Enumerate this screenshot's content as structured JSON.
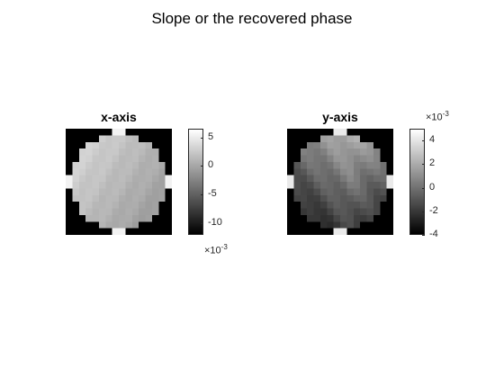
{
  "suptitle": "Slope or the recovered phase",
  "chart_data": [
    {
      "type": "heatmap",
      "title": "x-axis",
      "grid_size": 16,
      "colormap": "gray",
      "aperture": "circular pupil with four edge tabs",
      "value_note": "pupil values lie roughly between 1e-3 and 6e-3, brightest at the upper-left edge, darker toward the lower right",
      "colorbar": {
        "range": [
          -12,
          6.5
        ],
        "ticks": [
          5,
          0,
          -5,
          -10
        ],
        "tick_labels": [
          "5",
          "0",
          "-5",
          "-10"
        ],
        "exponent_label": "×10",
        "exponent": "-3",
        "exponent_position": "bottom"
      }
    },
    {
      "type": "heatmap",
      "title": "y-axis",
      "grid_size": 16,
      "colormap": "gray",
      "aperture": "circular pupil with four edge tabs",
      "value_note": "pupil values lie roughly between -2e-3 and 3e-3, lighter along the top, darker along the left and bottom",
      "colorbar": {
        "range": [
          -4,
          5
        ],
        "ticks": [
          4,
          2,
          0,
          -2,
          -4
        ],
        "tick_labels": [
          "4",
          "2",
          "0",
          "-2",
          "-4"
        ],
        "exponent_label": "×10",
        "exponent": "-3",
        "exponent_position": "top"
      }
    }
  ]
}
